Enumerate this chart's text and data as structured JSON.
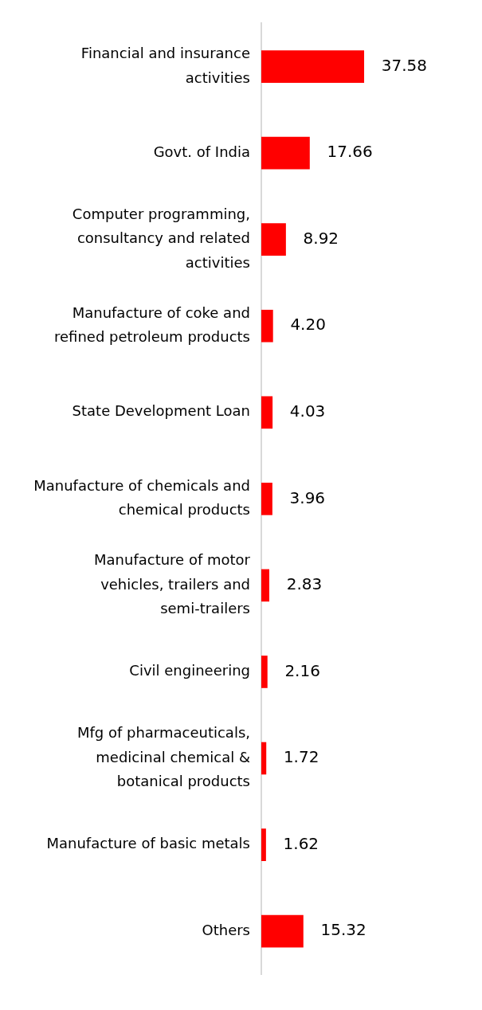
{
  "chart_data": {
    "type": "bar",
    "orientation": "horizontal",
    "categories": [
      "Financial and insurance activities",
      "Govt. of India",
      "Computer programming, consultancy and related activities",
      "Manufacture of coke and refined petroleum products",
      "State Development Loan",
      "Manufacture of chemicals and chemical products",
      "Manufacture of motor vehicles, trailers and semi-trailers",
      "Civil engineering",
      "Mfg of pharmaceuticals, medicinal chemical & botanical products",
      "Manufacture of basic metals",
      "Others"
    ],
    "values": [
      37.58,
      17.66,
      8.92,
      4.2,
      4.03,
      3.96,
      2.83,
      2.16,
      1.72,
      1.62,
      15.32
    ],
    "value_labels": [
      "37.58",
      "17.66",
      "8.92",
      "4.20",
      "4.03",
      "3.96",
      "2.83",
      "2.16",
      "1.72",
      "1.62",
      "15.32"
    ],
    "color": "#ff0000",
    "tick_labels": "y",
    "grid": false,
    "legend": false
  }
}
